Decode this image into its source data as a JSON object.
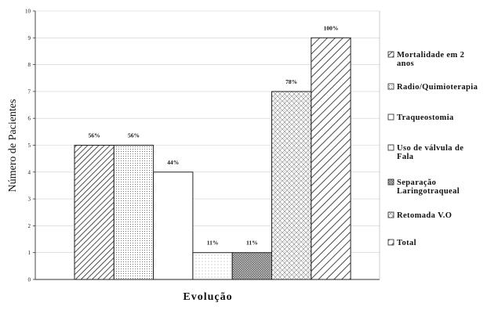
{
  "chart_data": {
    "type": "bar",
    "xlabel": "Evolução",
    "ylabel": "Número de Pacientes",
    "ylim": [
      0,
      10
    ],
    "yticks": [
      "0",
      "1",
      "2",
      "3",
      "4",
      "5",
      "6",
      "7",
      "8",
      "9",
      "10"
    ],
    "grid": true,
    "legend_position": "right",
    "series": [
      {
        "name": "Mortalidade em 2 anos",
        "value": 5,
        "label": "56%",
        "pattern": "hatch-dense"
      },
      {
        "name": "Radio/Quimioterapia",
        "value": 5,
        "label": "56%",
        "pattern": "dots"
      },
      {
        "name": "Traqueostomia",
        "value": 4,
        "label": "44%",
        "pattern": "solid-white"
      },
      {
        "name": "Uso de válvula de Fala",
        "value": 1,
        "label": "11%",
        "pattern": "dots-sparse"
      },
      {
        "name": "Separação Laringotraqueal",
        "value": 1,
        "label": "11%",
        "pattern": "crosshatch"
      },
      {
        "name": "Retomada V.O",
        "value": 7,
        "label": "78%",
        "pattern": "diamond"
      },
      {
        "name": "Total",
        "value": 9,
        "label": "100%",
        "pattern": "hatch-wide"
      }
    ],
    "legend_lines": [
      [
        "Mortalidade em 2",
        "anos"
      ],
      [
        "Radio/Quimioterapia"
      ],
      [
        "Traqueostomia"
      ],
      [
        "Uso de válvula de",
        "Fala"
      ],
      [
        "Separação",
        "Laringotraqueal"
      ],
      [
        "Retomada V.O"
      ],
      [
        "Total"
      ]
    ],
    "colors": {
      "bar_stroke": "#222222",
      "grid": "#cfcfcf",
      "background": "#ffffff"
    }
  }
}
